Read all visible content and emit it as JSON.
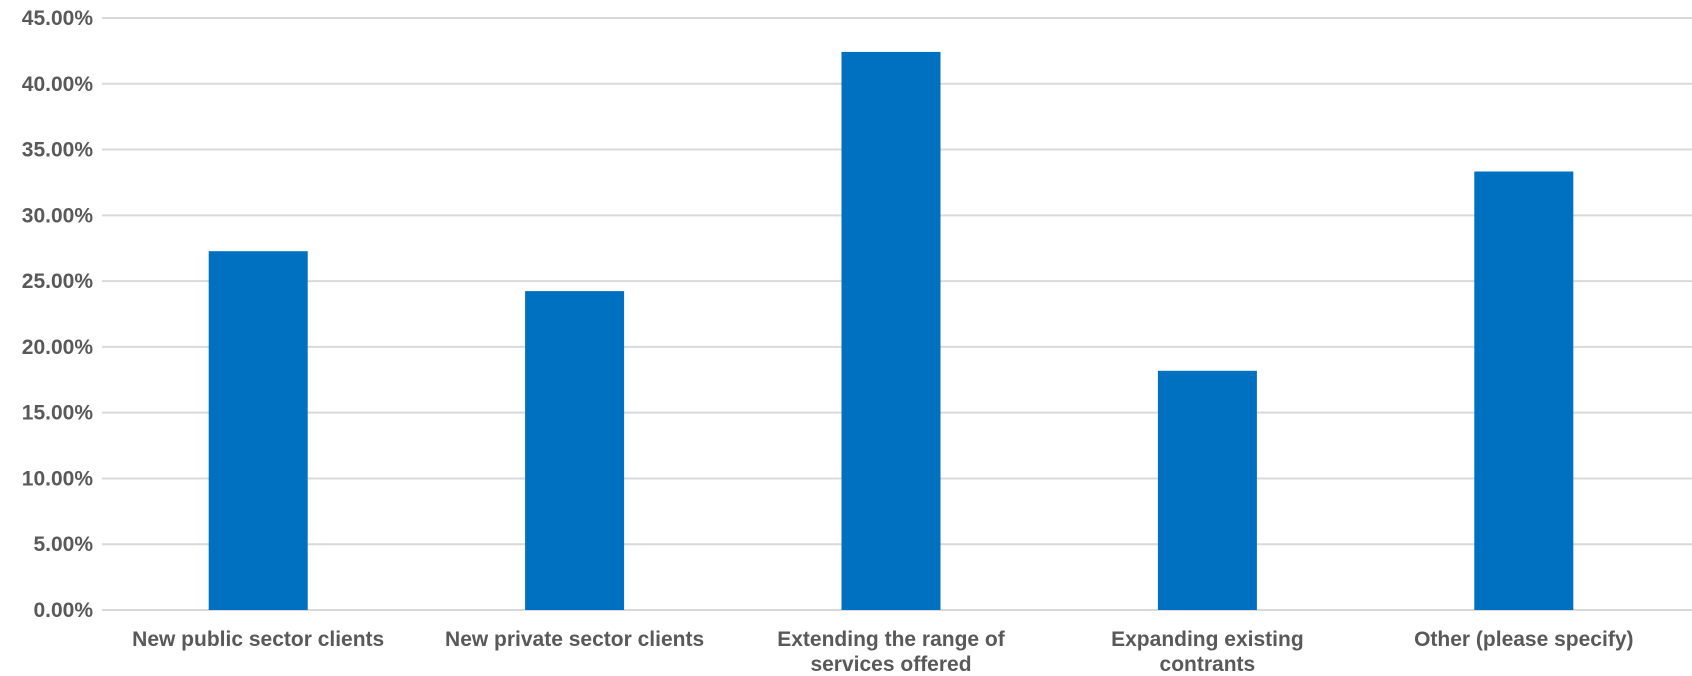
{
  "chart_data": {
    "type": "bar",
    "title": "",
    "xlabel": "",
    "ylabel": "",
    "categories": [
      [
        "New public sector clients"
      ],
      [
        "New private sector clients"
      ],
      [
        "Extending the range of",
        "services offered"
      ],
      [
        "Expanding existing",
        "contrants"
      ],
      [
        "Other (please specify)"
      ]
    ],
    "values": [
      27.27,
      24.24,
      42.42,
      18.18,
      33.33
    ],
    "ylim": [
      0,
      45
    ],
    "yticks": [
      0,
      5,
      10,
      15,
      20,
      25,
      30,
      35,
      40,
      45
    ],
    "ytick_labels": [
      "0.00%",
      "5.00%",
      "10.00%",
      "15.00%",
      "20.00%",
      "25.00%",
      "30.00%",
      "35.00%",
      "40.00%",
      "45.00%"
    ],
    "grid": true,
    "legend": "none",
    "bar_color": "#0070C0"
  }
}
